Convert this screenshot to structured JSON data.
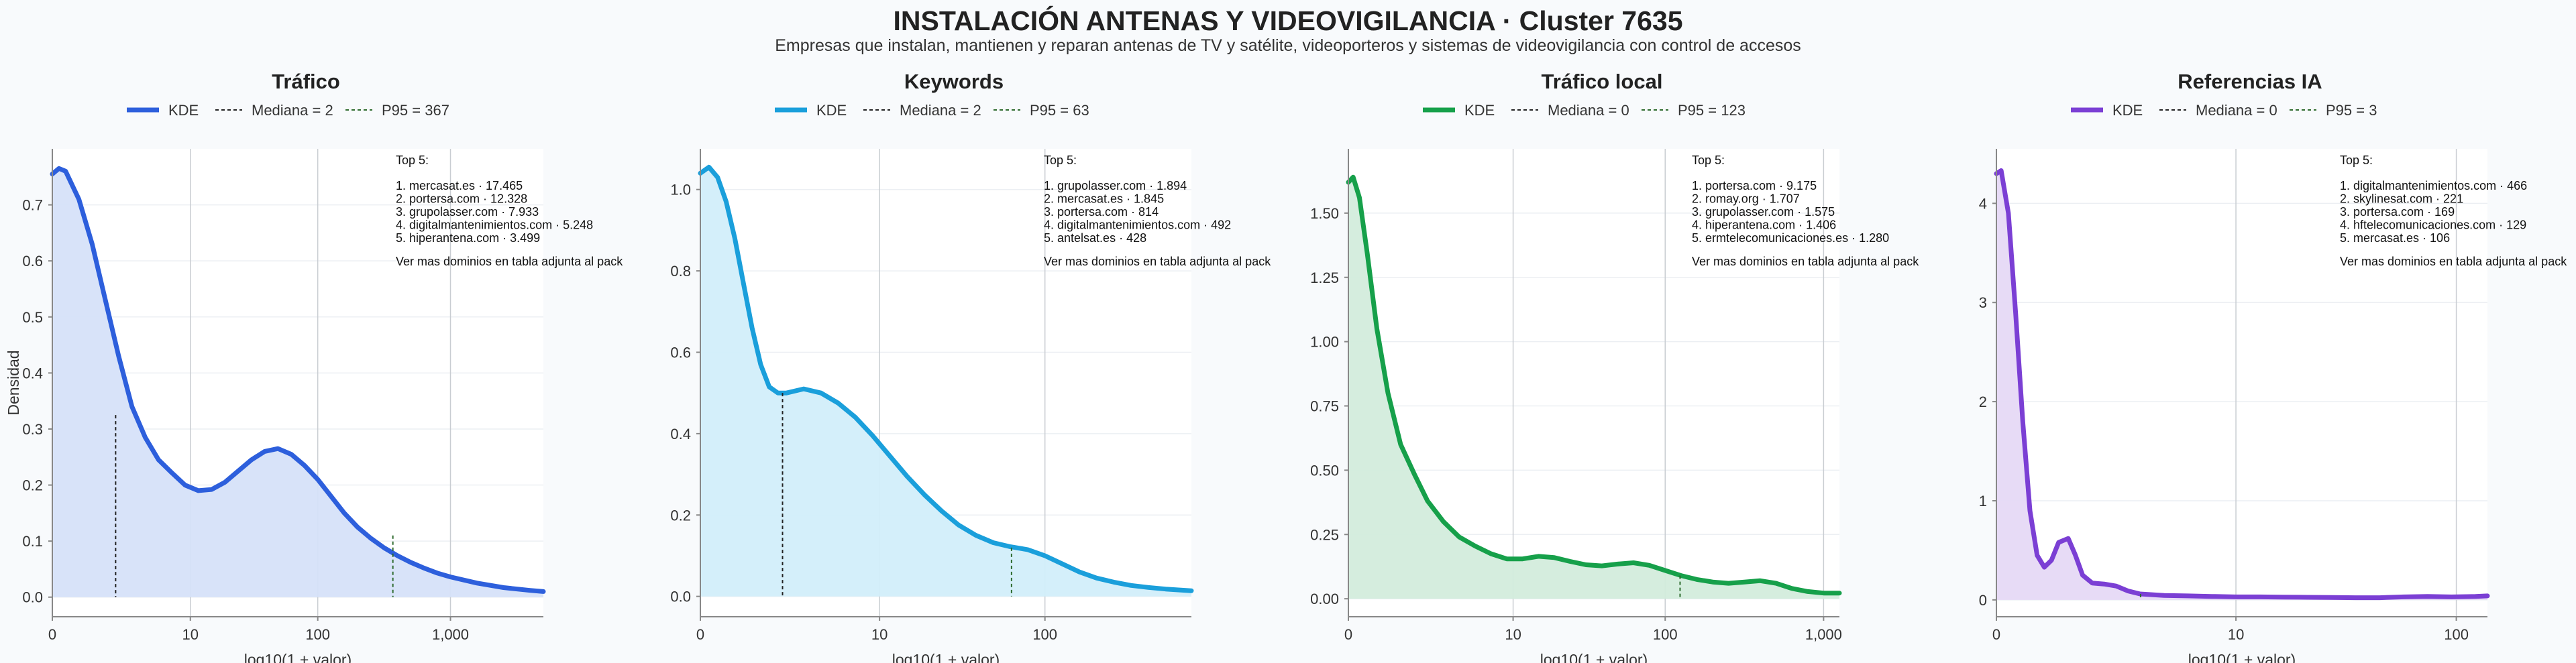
{
  "title": "INSTALACIÓN ANTENAS Y VIDEOVIGILANCIA · Cluster 7635",
  "subtitle": "Empresas que instalan, mantienen y reparan antenas de TV y satélite, videoporteros y sistemas de videovigilancia con control de accesos",
  "chart_data": [
    {
      "type": "area",
      "title": "Tráfico",
      "color": "#2d5fdc",
      "fill": "#d6e1f9",
      "xlabel": "log10(1 + valor)",
      "ylabel": "Densidad",
      "legend": {
        "position": "top",
        "kde": "KDE",
        "median": "Mediana = 2",
        "p95": "P95 = 367"
      },
      "median_value": 2,
      "p95_value": 367,
      "xlim": [
        0,
        3.7
      ],
      "ylim": [
        -0.035,
        0.8
      ],
      "xticks": [
        {
          "v": 0,
          "label": "0"
        },
        {
          "v": 1.04,
          "label": "10"
        },
        {
          "v": 2.0,
          "label": "100"
        },
        {
          "v": 3.0,
          "label": "1,000"
        }
      ],
      "yticks": [
        {
          "v": 0,
          "label": "0.0"
        },
        {
          "v": 0.1,
          "label": "0.1"
        },
        {
          "v": 0.2,
          "label": "0.2"
        },
        {
          "v": 0.3,
          "label": "0.3"
        },
        {
          "v": 0.4,
          "label": "0.4"
        },
        {
          "v": 0.5,
          "label": "0.5"
        },
        {
          "v": 0.6,
          "label": "0.6"
        },
        {
          "v": 0.7,
          "label": "0.7"
        }
      ],
      "x": [
        0,
        0.05,
        0.1,
        0.2,
        0.3,
        0.4,
        0.5,
        0.6,
        0.7,
        0.8,
        0.9,
        1.0,
        1.1,
        1.2,
        1.3,
        1.4,
        1.5,
        1.6,
        1.7,
        1.8,
        1.9,
        2.0,
        2.1,
        2.2,
        2.3,
        2.4,
        2.5,
        2.6,
        2.7,
        2.8,
        2.9,
        3.0,
        3.2,
        3.4,
        3.6,
        3.7
      ],
      "y": [
        0.755,
        0.765,
        0.76,
        0.71,
        0.63,
        0.53,
        0.43,
        0.34,
        0.285,
        0.245,
        0.222,
        0.2,
        0.19,
        0.192,
        0.205,
        0.225,
        0.245,
        0.26,
        0.265,
        0.255,
        0.235,
        0.21,
        0.18,
        0.15,
        0.125,
        0.105,
        0.088,
        0.074,
        0.062,
        0.052,
        0.043,
        0.036,
        0.025,
        0.017,
        0.012,
        0.01
      ],
      "median_x": 0.477,
      "median_y": 0.325,
      "p95_x": 2.566,
      "p95_y": 0.11,
      "top5_header": "Top 5:",
      "top5": [
        "1. mercasat.es · 17.465",
        "2. portersa.com · 12.328",
        "3. grupolasser.com · 7.933",
        "4. digitalmantenimientos.com · 5.248",
        "5. hiperantena.com · 3.499"
      ],
      "top5_note": "Ver mas dominios en tabla adjunta al pack"
    },
    {
      "type": "area",
      "title": "Keywords",
      "color": "#1a9fdb",
      "fill": "#d2eefa",
      "xlabel": "log10(1 + valor)",
      "ylabel": "",
      "legend": {
        "position": "top",
        "kde": "KDE",
        "median": "Mediana = 2",
        "p95": "P95 = 63"
      },
      "median_value": 2,
      "p95_value": 63,
      "xlim": [
        0,
        2.85
      ],
      "ylim": [
        -0.05,
        1.1
      ],
      "xticks": [
        {
          "v": 0,
          "label": "0"
        },
        {
          "v": 1.04,
          "label": "10"
        },
        {
          "v": 2.0,
          "label": "100"
        }
      ],
      "yticks": [
        {
          "v": 0,
          "label": "0.0"
        },
        {
          "v": 0.2,
          "label": "0.2"
        },
        {
          "v": 0.4,
          "label": "0.4"
        },
        {
          "v": 0.6,
          "label": "0.6"
        },
        {
          "v": 0.8,
          "label": "0.8"
        },
        {
          "v": 1.0,
          "label": "1.0"
        }
      ],
      "x": [
        0,
        0.05,
        0.1,
        0.15,
        0.2,
        0.25,
        0.3,
        0.35,
        0.4,
        0.45,
        0.5,
        0.6,
        0.7,
        0.8,
        0.9,
        1.0,
        1.1,
        1.2,
        1.3,
        1.4,
        1.5,
        1.6,
        1.7,
        1.8,
        1.9,
        2.0,
        2.1,
        2.2,
        2.3,
        2.4,
        2.5,
        2.6,
        2.7,
        2.85
      ],
      "y": [
        1.04,
        1.055,
        1.03,
        0.97,
        0.88,
        0.77,
        0.66,
        0.57,
        0.515,
        0.5,
        0.5,
        0.51,
        0.5,
        0.475,
        0.44,
        0.395,
        0.345,
        0.295,
        0.25,
        0.21,
        0.175,
        0.15,
        0.132,
        0.122,
        0.115,
        0.1,
        0.08,
        0.06,
        0.045,
        0.035,
        0.027,
        0.022,
        0.018,
        0.014
      ],
      "median_x": 0.477,
      "median_y": 0.5,
      "p95_x": 1.806,
      "p95_y": 0.12,
      "top5_header": "Top 5:",
      "top5": [
        "1. grupolasser.com · 1.894",
        "2. mercasat.es · 1.845",
        "3. portersa.com · 814",
        "4. digitalmantenimientos.com · 492",
        "5. antelsat.es · 428"
      ],
      "top5_note": "Ver mas dominios en tabla adjunta al pack"
    },
    {
      "type": "area",
      "title": "Tráfico local",
      "color": "#16a04a",
      "fill": "#d3ecdc",
      "xlabel": "log10(1 + valor)",
      "ylabel": "",
      "legend": {
        "position": "top",
        "kde": "KDE",
        "median": "Mediana = 0",
        "p95": "P95 = 123"
      },
      "median_value": 0,
      "p95_value": 123,
      "xlim": [
        0,
        3.1
      ],
      "ylim": [
        -0.07,
        1.75
      ],
      "xticks": [
        {
          "v": 0,
          "label": "0"
        },
        {
          "v": 1.04,
          "label": "10"
        },
        {
          "v": 2.0,
          "label": "100"
        },
        {
          "v": 3.0,
          "label": "1,000"
        }
      ],
      "yticks": [
        {
          "v": 0,
          "label": "0.00"
        },
        {
          "v": 0.25,
          "label": "0.25"
        },
        {
          "v": 0.5,
          "label": "0.50"
        },
        {
          "v": 0.75,
          "label": "0.75"
        },
        {
          "v": 1.0,
          "label": "1.00"
        },
        {
          "v": 1.25,
          "label": "1.25"
        },
        {
          "v": 1.5,
          "label": "1.50"
        }
      ],
      "x": [
        0,
        0.03,
        0.07,
        0.12,
        0.18,
        0.25,
        0.33,
        0.42,
        0.5,
        0.6,
        0.7,
        0.8,
        0.9,
        1.0,
        1.1,
        1.2,
        1.3,
        1.4,
        1.5,
        1.6,
        1.7,
        1.8,
        1.9,
        2.0,
        2.1,
        2.2,
        2.3,
        2.4,
        2.5,
        2.6,
        2.7,
        2.8,
        2.9,
        3.0,
        3.1
      ],
      "y": [
        1.62,
        1.64,
        1.56,
        1.34,
        1.05,
        0.8,
        0.6,
        0.48,
        0.38,
        0.3,
        0.24,
        0.205,
        0.175,
        0.155,
        0.155,
        0.165,
        0.16,
        0.145,
        0.132,
        0.128,
        0.135,
        0.14,
        0.13,
        0.11,
        0.09,
        0.075,
        0.065,
        0.06,
        0.065,
        0.07,
        0.06,
        0.04,
        0.028,
        0.022,
        0.022
      ],
      "median_x": 0.0,
      "median_y": 1.62,
      "p95_x": 2.094,
      "p95_y": 0.09,
      "top5_header": "Top 5:",
      "top5": [
        "1. portersa.com · 9.175",
        "2. romay.org · 1.707",
        "3. grupolasser.com · 1.575",
        "4. hiperantena.com · 1.406",
        "5. ermtelecomunicaciones.es · 1.280"
      ],
      "top5_note": "Ver mas dominios en tabla adjunta al pack"
    },
    {
      "type": "area",
      "title": "Referencias IA",
      "color": "#7b3fd4",
      "fill": "#e6d9f5",
      "xlabel": "log10(1 + valor)",
      "ylabel": "",
      "legend": {
        "position": "top",
        "kde": "KDE",
        "median": "Mediana = 0",
        "p95": "P95 = 3"
      },
      "median_value": 0,
      "p95_value": 3,
      "xlim": [
        0,
        2.05
      ],
      "ylim": [
        -0.17,
        4.55
      ],
      "xticks": [
        {
          "v": 0,
          "label": "0"
        },
        {
          "v": 1.0,
          "label": "10"
        },
        {
          "v": 1.92,
          "label": "100"
        }
      ],
      "yticks": [
        {
          "v": 0,
          "label": "0"
        },
        {
          "v": 1,
          "label": "1"
        },
        {
          "v": 2,
          "label": "2"
        },
        {
          "v": 3,
          "label": "3"
        },
        {
          "v": 4,
          "label": "4"
        }
      ],
      "x": [
        0,
        0.02,
        0.05,
        0.08,
        0.11,
        0.14,
        0.17,
        0.2,
        0.23,
        0.26,
        0.3,
        0.33,
        0.36,
        0.4,
        0.45,
        0.5,
        0.55,
        0.6,
        0.7,
        0.8,
        0.9,
        1.0,
        1.1,
        1.2,
        1.3,
        1.4,
        1.5,
        1.6,
        1.7,
        1.8,
        1.9,
        2.0,
        2.05
      ],
      "y": [
        4.3,
        4.33,
        3.9,
        2.9,
        1.8,
        0.9,
        0.45,
        0.33,
        0.4,
        0.58,
        0.62,
        0.45,
        0.25,
        0.17,
        0.16,
        0.14,
        0.09,
        0.06,
        0.045,
        0.04,
        0.035,
        0.03,
        0.03,
        0.028,
        0.026,
        0.024,
        0.022,
        0.022,
        0.03,
        0.035,
        0.03,
        0.035,
        0.04
      ],
      "median_x": 0.0,
      "median_y": 4.3,
      "p95_x": 0.602,
      "p95_y": 0.06,
      "top5_header": "Top 5:",
      "top5": [
        "1. digitalmantenimientos.com · 466",
        "2. skylinesat.com · 221",
        "3. portersa.com · 169",
        "4. hftelecomunicaciones.com · 129",
        "5. mercasat.es · 106"
      ],
      "top5_note": "Ver mas dominios en tabla adjunta al pack"
    }
  ]
}
